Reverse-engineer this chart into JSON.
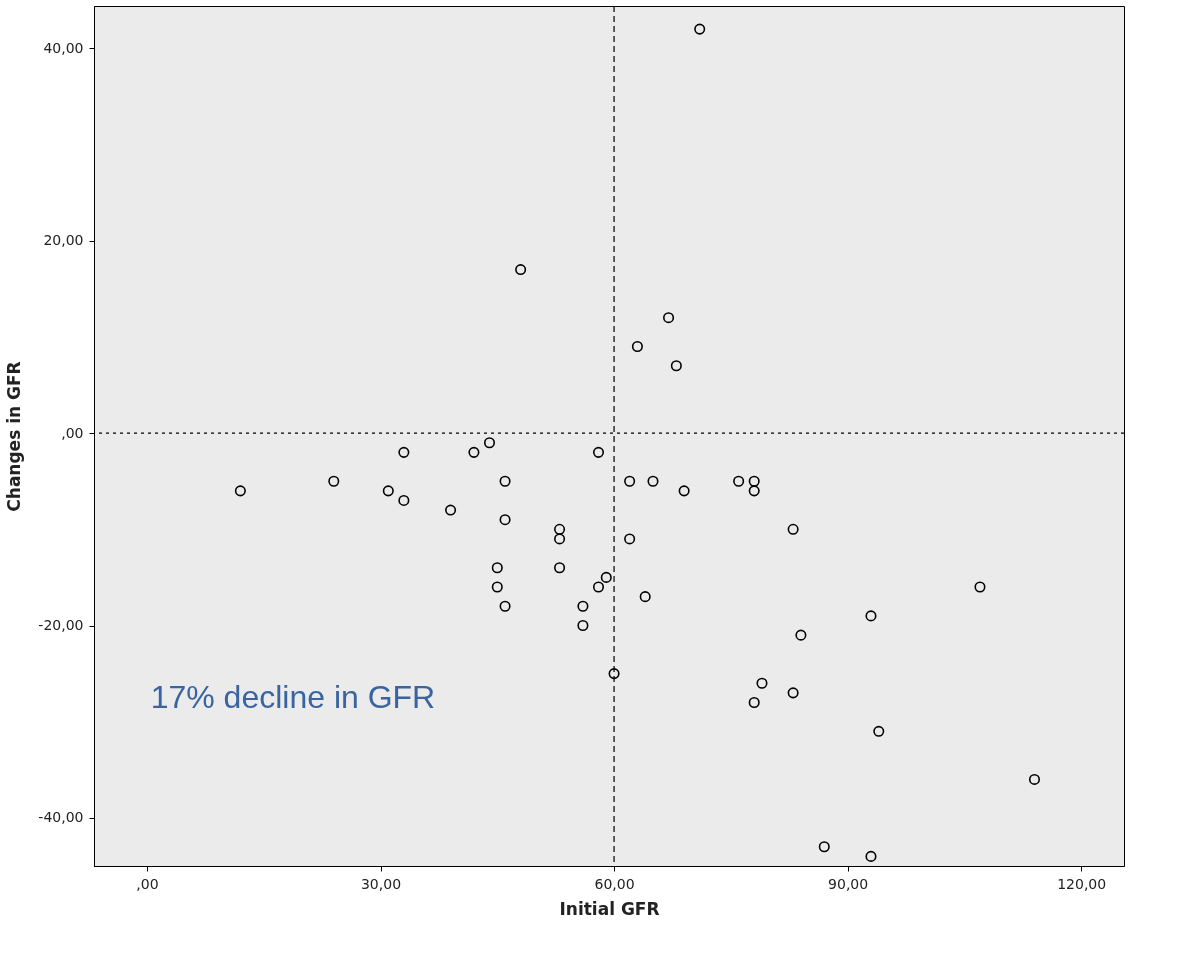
{
  "chart_data": {
    "type": "scatter",
    "xlabel": "Initial GFR",
    "ylabel": "Changes in GFR",
    "x": [
      71,
      48,
      67,
      63,
      68,
      12,
      24,
      31,
      33,
      33,
      39,
      42,
      44,
      46,
      46,
      45,
      45,
      46,
      53,
      53,
      53,
      56,
      56,
      58,
      58,
      59,
      60,
      62,
      62,
      65,
      69,
      64,
      76,
      78,
      78,
      83,
      107,
      93,
      84,
      79,
      78,
      83,
      94,
      114,
      87,
      93
    ],
    "series": [
      {
        "color": "#000000",
        "values": [
          42,
          17,
          12,
          9,
          7,
          -6,
          -5,
          -6,
          -2,
          -7,
          -8,
          -2,
          -1,
          -5,
          -9,
          -14,
          -16,
          -18,
          -10,
          -11,
          -14,
          -18,
          -20,
          -2,
          -16,
          -15,
          -25,
          -5,
          -11,
          -5,
          -6,
          -17,
          -5,
          -5,
          -6,
          -10,
          -16,
          -19,
          -21,
          -26,
          -28,
          -27,
          -31,
          -36,
          -43,
          -44
        ]
      }
    ],
    "marker": "circle",
    "xlim": [
      -6.8,
      125.5
    ],
    "ylim": [
      -45,
      44.4
    ],
    "xticks": [
      {
        "value": 0,
        "label": ",00"
      },
      {
        "value": 30,
        "label": "30,00"
      },
      {
        "value": 60,
        "label": "60,00"
      },
      {
        "value": 90,
        "label": "90,00"
      },
      {
        "value": 120,
        "label": "120,00"
      }
    ],
    "yticks": [
      {
        "value": -40,
        "label": "-40,00"
      },
      {
        "value": -20,
        "label": "-20,00"
      },
      {
        "value": 0,
        "label": ",00"
      },
      {
        "value": 20,
        "label": "20,00"
      },
      {
        "value": 40,
        "label": "40,00"
      }
    ],
    "ref_lines": [
      {
        "axis": "x",
        "value": 60,
        "line_style": "dashed",
        "color": "#000000"
      },
      {
        "axis": "y",
        "value": 0,
        "line_style": "dotted",
        "color": "#000000"
      }
    ],
    "annotations": [
      "17% decline in GFR"
    ],
    "grid": false
  }
}
